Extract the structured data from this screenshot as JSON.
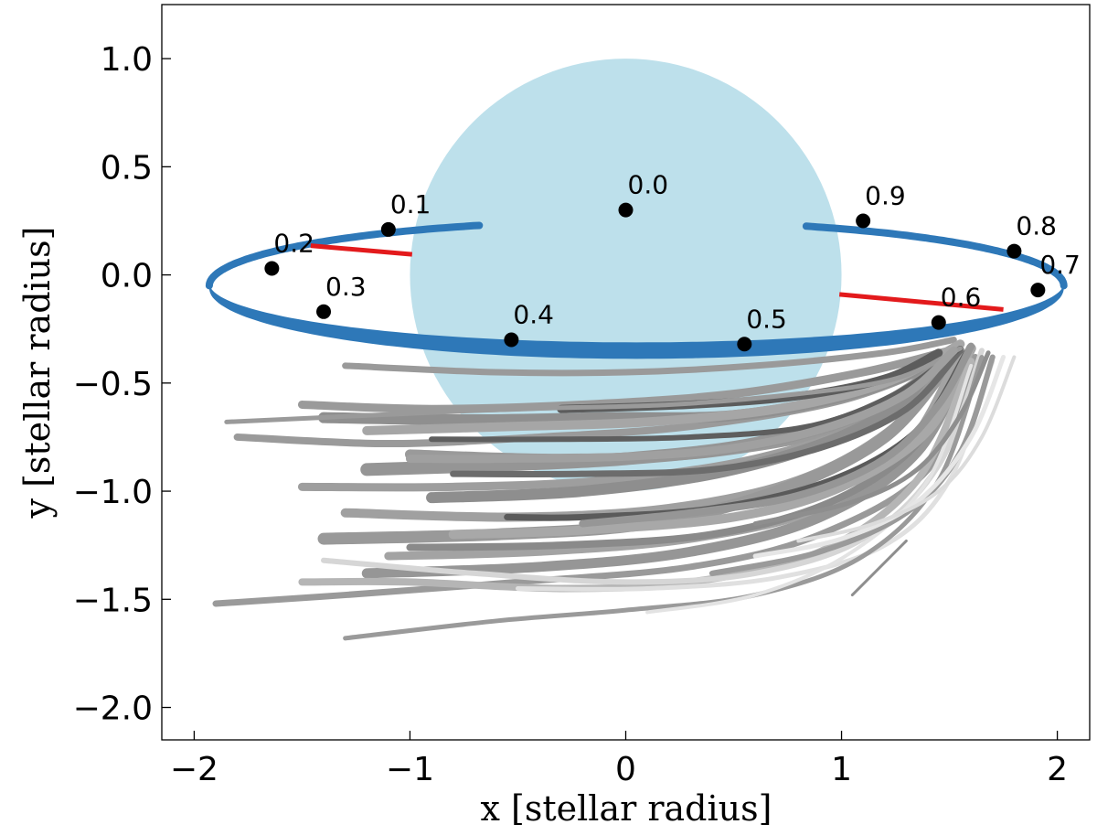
{
  "chart_data": {
    "type": "scatter",
    "xlabel": "x [stellar radius]",
    "ylabel": "y [stellar radius]",
    "xlim": [
      -2.15,
      2.15
    ],
    "ylim": [
      -2.15,
      1.25
    ],
    "x_ticks": [
      -2,
      -1,
      0,
      1,
      2
    ],
    "y_ticks": [
      1.0,
      0.5,
      0.0,
      -0.5,
      -1.0,
      -1.5,
      -2.0
    ],
    "x_tick_labels": [
      "−2",
      "−1",
      "0",
      "1",
      "2"
    ],
    "y_tick_labels": [
      "1.0",
      "0.5",
      "0.0",
      "−0.5",
      "−1.0",
      "−1.5",
      "−2.0"
    ],
    "star": {
      "cx": 0,
      "cy": 0,
      "r": 1.0,
      "color": "#bde0eb"
    },
    "orbit": {
      "cx": 0.05,
      "cy": -0.05,
      "rx": 1.98,
      "ry": 0.3,
      "color": "#2e78b8"
    },
    "phase_points": [
      {
        "label": "0.0",
        "x": 0.0,
        "y": 0.3
      },
      {
        "label": "0.1",
        "x": -1.1,
        "y": 0.21
      },
      {
        "label": "0.2",
        "x": -1.64,
        "y": 0.03
      },
      {
        "label": "0.3",
        "x": -1.4,
        "y": -0.17
      },
      {
        "label": "0.4",
        "x": -0.53,
        "y": -0.3
      },
      {
        "label": "0.5",
        "x": 0.55,
        "y": -0.32
      },
      {
        "label": "0.6",
        "x": 1.45,
        "y": -0.22
      },
      {
        "label": "0.7",
        "x": 1.91,
        "y": -0.07
      },
      {
        "label": "0.8",
        "x": 1.8,
        "y": 0.11
      },
      {
        "label": "0.9",
        "x": 1.1,
        "y": 0.25
      }
    ],
    "red_segments": [
      {
        "x": [
          -1.46,
          -0.99
        ],
        "y": [
          0.135,
          0.095
        ]
      },
      {
        "x": [
          0.99,
          1.75
        ],
        "y": [
          -0.09,
          -0.16
        ]
      }
    ],
    "streams": [
      {
        "x": [
          1.52,
          1.2,
          0.6,
          0.0,
          -0.6,
          -1.3
        ],
        "y": [
          -0.3,
          -0.36,
          -0.42,
          -0.45,
          -0.45,
          -0.42
        ],
        "w": 7,
        "c": "#9a9a9a"
      },
      {
        "x": [
          1.5,
          1.1,
          0.5,
          -0.2,
          -0.9,
          -1.5
        ],
        "y": [
          -0.35,
          -0.45,
          -0.55,
          -0.6,
          -0.62,
          -0.6
        ],
        "w": 9,
        "c": "#9a9a9a"
      },
      {
        "x": [
          1.48,
          1.0,
          0.3,
          -0.4,
          -1.1,
          -1.8
        ],
        "y": [
          -0.4,
          -0.58,
          -0.7,
          -0.75,
          -0.78,
          -0.75
        ],
        "w": 8,
        "c": "#9a9a9a"
      },
      {
        "x": [
          1.5,
          1.05,
          0.5,
          -0.1,
          -0.7,
          -1.4
        ],
        "y": [
          -0.38,
          -0.55,
          -0.65,
          -0.66,
          -0.67,
          -0.66
        ],
        "w": 12,
        "c": "#8f8f8f"
      },
      {
        "x": [
          1.55,
          1.2,
          0.7,
          0.1,
          -0.5,
          -1.2
        ],
        "y": [
          -0.32,
          -0.5,
          -0.62,
          -0.68,
          -0.7,
          -0.72
        ],
        "w": 10,
        "c": "#a6a6a6"
      },
      {
        "x": [
          1.5,
          1.1,
          0.4,
          -0.3,
          -1.0
        ],
        "y": [
          -0.42,
          -0.68,
          -0.82,
          -0.85,
          -0.83
        ],
        "w": 11,
        "c": "#9a9a9a"
      },
      {
        "x": [
          1.52,
          1.15,
          0.6,
          0.0,
          -0.6,
          -1.2
        ],
        "y": [
          -0.38,
          -0.62,
          -0.78,
          -0.85,
          -0.88,
          -0.9
        ],
        "w": 14,
        "c": "#959595"
      },
      {
        "x": [
          1.55,
          1.2,
          0.6,
          -0.1,
          -0.8,
          -1.5
        ],
        "y": [
          -0.35,
          -0.65,
          -0.85,
          -0.95,
          -0.98,
          -0.98
        ],
        "w": 9,
        "c": "#9e9e9e"
      },
      {
        "x": [
          1.5,
          1.1,
          0.5,
          -0.2,
          -0.9
        ],
        "y": [
          -0.4,
          -0.7,
          -0.9,
          -1.0,
          -1.03
        ],
        "w": 12,
        "c": "#8e8e8e"
      },
      {
        "x": [
          1.55,
          1.25,
          0.8,
          0.2,
          -0.5,
          -1.3
        ],
        "y": [
          -0.35,
          -0.7,
          -0.95,
          -1.08,
          -1.12,
          -1.1
        ],
        "w": 10,
        "c": "#a0a0a0"
      },
      {
        "x": [
          1.52,
          1.2,
          0.7,
          0.1,
          -0.6,
          -1.4
        ],
        "y": [
          -0.38,
          -0.75,
          -1.0,
          -1.15,
          -1.2,
          -1.22
        ],
        "w": 13,
        "c": "#999999"
      },
      {
        "x": [
          1.55,
          1.3,
          0.9,
          0.3,
          -0.4,
          -1.1
        ],
        "y": [
          -0.36,
          -0.8,
          -1.08,
          -1.22,
          -1.28,
          -1.3
        ],
        "w": 9,
        "c": "#a3a3a3"
      },
      {
        "x": [
          1.6,
          1.35,
          0.9,
          0.3,
          -0.4,
          -1.2
        ],
        "y": [
          -0.34,
          -0.82,
          -1.12,
          -1.28,
          -1.35,
          -1.38
        ],
        "w": 11,
        "c": "#969696"
      },
      {
        "x": [
          1.58,
          1.35,
          0.95,
          0.4,
          -0.3,
          -1.0
        ],
        "y": [
          -0.36,
          -0.78,
          -1.05,
          -1.2,
          -1.25,
          -1.26
        ],
        "w": 8,
        "c": "#8a8a8a"
      },
      {
        "x": [
          1.6,
          1.4,
          1.0,
          0.5,
          -0.2,
          -0.8
        ],
        "y": [
          -0.34,
          -0.72,
          -0.98,
          -1.12,
          -1.18,
          -1.2
        ],
        "w": 10,
        "c": "#a8a8a8"
      },
      {
        "x": [
          1.62,
          1.4,
          0.9,
          0.3,
          -0.5,
          -1.3,
          -1.9
        ],
        "y": [
          -0.38,
          -0.9,
          -1.2,
          -1.35,
          -1.42,
          -1.48,
          -1.52
        ],
        "w": 7,
        "c": "#9a9a9a"
      },
      {
        "x": [
          1.6,
          1.35,
          0.9,
          0.3,
          -0.3,
          -1.0,
          -1.5
        ],
        "y": [
          -0.4,
          -0.95,
          -1.28,
          -1.42,
          -1.45,
          -1.42,
          -1.42
        ],
        "w": 8,
        "c": "#b5b5b5"
      },
      {
        "x": [
          1.65,
          1.45,
          1.1,
          0.6,
          0.0,
          -0.7,
          -1.4
        ],
        "y": [
          -0.35,
          -0.88,
          -1.22,
          -1.38,
          -1.42,
          -1.38,
          -1.32
        ],
        "w": 6,
        "c": "#d6d6d6"
      },
      {
        "x": [
          1.7,
          1.5,
          1.2,
          0.7,
          0.1,
          -0.5
        ],
        "y": [
          -0.4,
          -0.95,
          -1.25,
          -1.4,
          -1.45,
          -1.45
        ],
        "w": 5,
        "c": "#e0e0e0"
      },
      {
        "x": [
          1.65,
          1.45,
          1.1,
          0.6,
          0.0,
          -0.6,
          -1.3
        ],
        "y": [
          -0.38,
          -0.95,
          -1.3,
          -1.48,
          -1.55,
          -1.6,
          -1.68
        ],
        "w": 5,
        "c": "#9a9a9a"
      },
      {
        "x": [
          1.6,
          1.4,
          1.05,
          0.6,
          0.1
        ],
        "y": [
          -0.42,
          -0.95,
          -1.28,
          -1.48,
          -1.56
        ],
        "w": 4,
        "c": "#e3e3e3"
      },
      {
        "x": [
          1.7,
          1.55,
          1.3,
          0.9,
          0.4
        ],
        "y": [
          -0.38,
          -0.82,
          -1.1,
          -1.28,
          -1.38
        ],
        "w": 6,
        "c": "#9a9a9a"
      },
      {
        "x": [
          1.75,
          1.6,
          1.35,
          1.0,
          0.6
        ],
        "y": [
          -0.38,
          -0.75,
          -1.05,
          -1.22,
          -1.3
        ],
        "w": 5,
        "c": "#e6e6e6"
      },
      {
        "x": [
          1.8,
          1.65,
          1.45,
          1.15,
          0.8
        ],
        "y": [
          -0.38,
          -0.75,
          -1.0,
          -1.15,
          -1.23
        ],
        "w": 4,
        "c": "#dcdcdc"
      },
      {
        "x": [
          1.55,
          1.3,
          0.9,
          0.4,
          -0.2,
          -0.8
        ],
        "y": [
          -0.35,
          -0.62,
          -0.8,
          -0.9,
          -0.92,
          -0.92
        ],
        "w": 7,
        "c": "#6c6c6c"
      },
      {
        "x": [
          1.55,
          1.25,
          0.85,
          0.3,
          -0.3,
          -0.9
        ],
        "y": [
          -0.34,
          -0.55,
          -0.7,
          -0.75,
          -0.76,
          -0.76
        ],
        "w": 6,
        "c": "#5e5e5e"
      },
      {
        "x": [
          1.58,
          1.35,
          0.95,
          0.4,
          -0.2,
          -0.55
        ],
        "y": [
          -0.36,
          -0.72,
          -0.95,
          -1.08,
          -1.12,
          -1.12
        ],
        "w": 7,
        "c": "#5a5a5a"
      },
      {
        "x": [
          1.45,
          1.2,
          0.8,
          0.3,
          -0.3
        ],
        "y": [
          -0.36,
          -0.48,
          -0.56,
          -0.6,
          -0.62
        ],
        "w": 9,
        "c": "#5c5c5c"
      },
      {
        "x": [
          1.55,
          1.25,
          0.8,
          0.2,
          -0.5,
          -1.2,
          -1.85
        ],
        "y": [
          -0.34,
          -0.48,
          -0.55,
          -0.6,
          -0.62,
          -0.65,
          -0.68
        ],
        "w": 5,
        "c": "#9a9a9a"
      },
      {
        "x": [
          1.52,
          1.3,
          0.95,
          0.5,
          0.0,
          -0.6,
          -1.0
        ],
        "y": [
          -0.35,
          -0.55,
          -0.7,
          -0.8,
          -0.84,
          -0.85,
          -0.85
        ],
        "w": 9,
        "c": "#a0a0a0"
      },
      {
        "x": [
          1.6,
          1.45,
          1.2,
          0.8,
          0.3,
          -0.2
        ],
        "y": [
          -0.33,
          -0.6,
          -0.85,
          -1.02,
          -1.1,
          -1.15
        ],
        "w": 8,
        "c": "#969696"
      },
      {
        "x": [
          1.68,
          1.55,
          1.35,
          1.05,
          0.6
        ],
        "y": [
          -0.36,
          -0.65,
          -0.9,
          -1.05,
          -1.15
        ],
        "w": 5,
        "c": "#8e8e8e"
      },
      {
        "x": [
          1.05,
          1.3
        ],
        "y": [
          -1.48,
          -1.23
        ],
        "w": 3,
        "c": "#8e8e8e"
      }
    ]
  }
}
